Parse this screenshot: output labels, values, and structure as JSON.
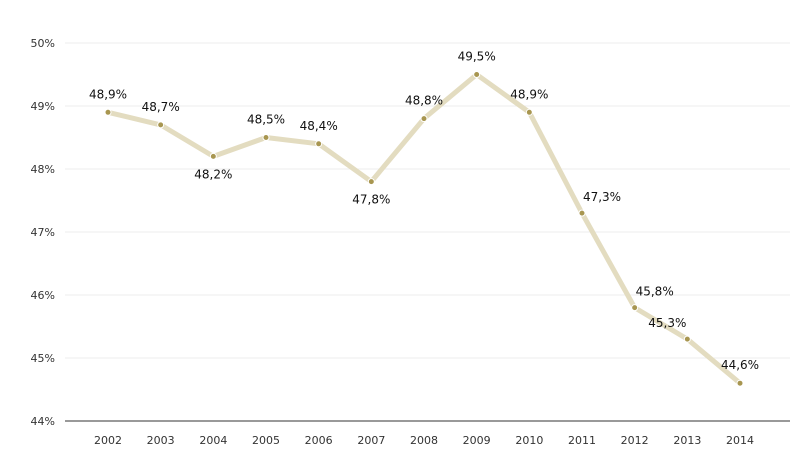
{
  "chart_data": {
    "type": "line",
    "categories": [
      "2002",
      "2003",
      "2004",
      "2005",
      "2006",
      "2007",
      "2008",
      "2009",
      "2010",
      "2011",
      "2012",
      "2013",
      "2014"
    ],
    "values": [
      48.9,
      48.7,
      48.2,
      48.5,
      48.4,
      47.8,
      48.8,
      49.5,
      48.9,
      47.3,
      45.8,
      45.3,
      44.6
    ],
    "data_labels": [
      "48,9%",
      "48,7%",
      "48,2%",
      "48,5%",
      "48,4%",
      "47,8%",
      "48,8%",
      "49,5%",
      "48,9%",
      "47,3%",
      "45,8%",
      "45,3%",
      "44,6%"
    ],
    "y_ticks": [
      "44%",
      "45%",
      "46%",
      "47%",
      "48%",
      "49%",
      "50%"
    ],
    "ylim": [
      44,
      50
    ],
    "grid": true,
    "colors": {
      "line": "#e3dcc0",
      "marker": "#a89650",
      "grid": "#eeeeee",
      "axis": "#333333"
    }
  }
}
